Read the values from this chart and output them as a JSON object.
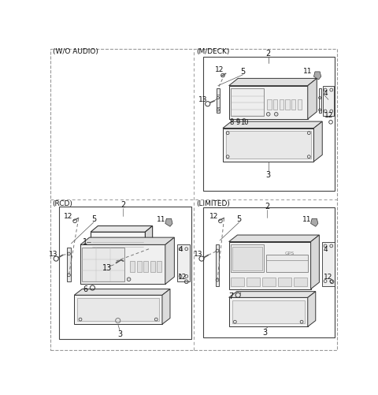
{
  "bg": "#ffffff",
  "line_color": "#333333",
  "dash_color": "#777777",
  "label_color": "#111111",
  "section_labels": {
    "wo_audio": "(W/O AUDIO)",
    "mdeck": "(M/DECK)",
    "rcd": "(RCD)",
    "limited": "(LIMITED)"
  },
  "figsize": [
    4.8,
    5.01
  ],
  "dpi": 100
}
